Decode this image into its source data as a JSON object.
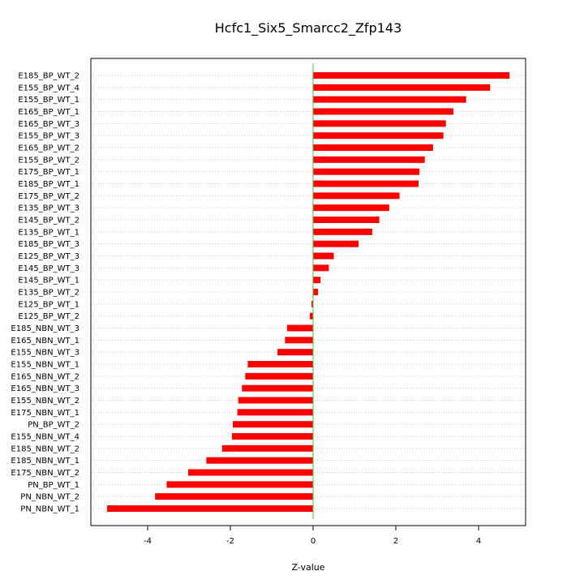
{
  "chart_data": {
    "type": "bar",
    "orientation": "horizontal",
    "title": "Hcfc1_Six5_Smarcc2_Zfp143",
    "xlabel": "Z-value",
    "ylabel": "",
    "xlim": [
      -5.1,
      5.2
    ],
    "x_ticks": [
      "-4",
      "-2",
      "0",
      "2",
      "4"
    ],
    "x_tick_values": [
      -4,
      -2,
      0,
      2,
      4
    ],
    "grid": "horizontal dotted",
    "zero_line_color": "#33cc33",
    "bar_color": "#ff0000",
    "categories": [
      "E185_BP_WT_2",
      "E155_BP_WT_4",
      "E155_BP_WT_1",
      "E165_BP_WT_1",
      "E165_BP_WT_3",
      "E155_BP_WT_3",
      "E165_BP_WT_2",
      "E155_BP_WT_2",
      "E175_BP_WT_1",
      "E185_BP_WT_1",
      "E175_BP_WT_2",
      "E135_BP_WT_3",
      "E145_BP_WT_2",
      "E135_BP_WT_1",
      "E185_BP_WT_3",
      "E125_BP_WT_3",
      "E145_BP_WT_3",
      "E145_BP_WT_1",
      "E135_BP_WT_2",
      "E125_BP_WT_1",
      "E125_BP_WT_2",
      "E185_NBN_WT_3",
      "E165_NBN_WT_1",
      "E155_NBN_WT_3",
      "E155_NBN_WT_1",
      "E165_NBN_WT_2",
      "E165_NBN_WT_3",
      "E155_NBN_WT_2",
      "E175_NBN_WT_1",
      "PN_BP_WT_2",
      "E155_NBN_WT_4",
      "E185_NBN_WT_2",
      "E185_NBN_WT_1",
      "E175_NBN_WT_2",
      "PN_BP_WT_1",
      "PN_NBN_WT_2",
      "PN_NBN_WT_1"
    ],
    "values": [
      4.75,
      4.28,
      3.7,
      3.39,
      3.21,
      3.15,
      2.9,
      2.7,
      2.57,
      2.55,
      2.09,
      1.84,
      1.6,
      1.43,
      1.1,
      0.5,
      0.38,
      0.18,
      0.12,
      -0.04,
      -0.08,
      -0.63,
      -0.68,
      -0.86,
      -1.58,
      -1.64,
      -1.72,
      -1.81,
      -1.83,
      -1.94,
      -1.96,
      -2.2,
      -2.58,
      -3.02,
      -3.54,
      -3.82,
      -4.98
    ]
  }
}
